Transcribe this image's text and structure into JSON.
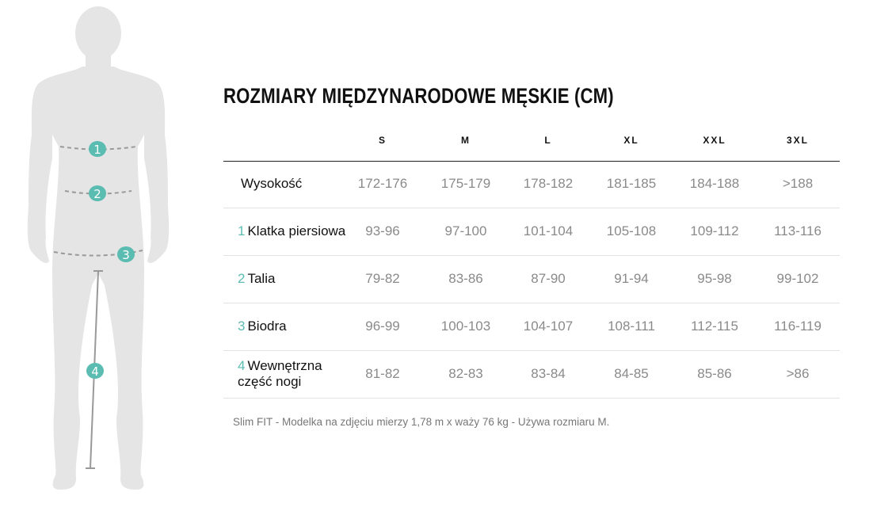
{
  "title": "ROZMIARY MIĘDZYNARODOWE MĘSKIE (CM)",
  "columns": [
    "S",
    "M",
    "L",
    "XL",
    "XXL",
    "3XL"
  ],
  "rows": [
    {
      "num": "",
      "label": "Wysokość",
      "values": [
        "172-176",
        "175-179",
        "178-182",
        "181-185",
        "184-188",
        ">188"
      ]
    },
    {
      "num": "1",
      "label": "Klatka piersiowa",
      "values": [
        "93-96",
        "97-100",
        "101-104",
        "105-108",
        "109-112",
        "113-116"
      ]
    },
    {
      "num": "2",
      "label": "Talia",
      "values": [
        "79-82",
        "83-86",
        "87-90",
        "91-94",
        "95-98",
        "99-102"
      ]
    },
    {
      "num": "3",
      "label": "Biodra",
      "values": [
        "96-99",
        "100-103",
        "104-107",
        "108-111",
        "112-115",
        "116-119"
      ]
    },
    {
      "num": "4",
      "label": "Wewnętrzna część nogi",
      "values": [
        "81-82",
        "82-83",
        "83-84",
        "84-85",
        "85-86",
        ">86"
      ]
    }
  ],
  "note": "Slim FIT - Modelka na zdjęciu mierzy 1,78 m x waży 76 kg - Używa rozmiaru M.",
  "figure": {
    "markers": [
      "1",
      "2",
      "3",
      "4"
    ]
  },
  "colors": {
    "accent": "#5bbcb2",
    "silhouette": "#e5e5e5",
    "text": "#111111",
    "value": "#8a8a8a"
  }
}
